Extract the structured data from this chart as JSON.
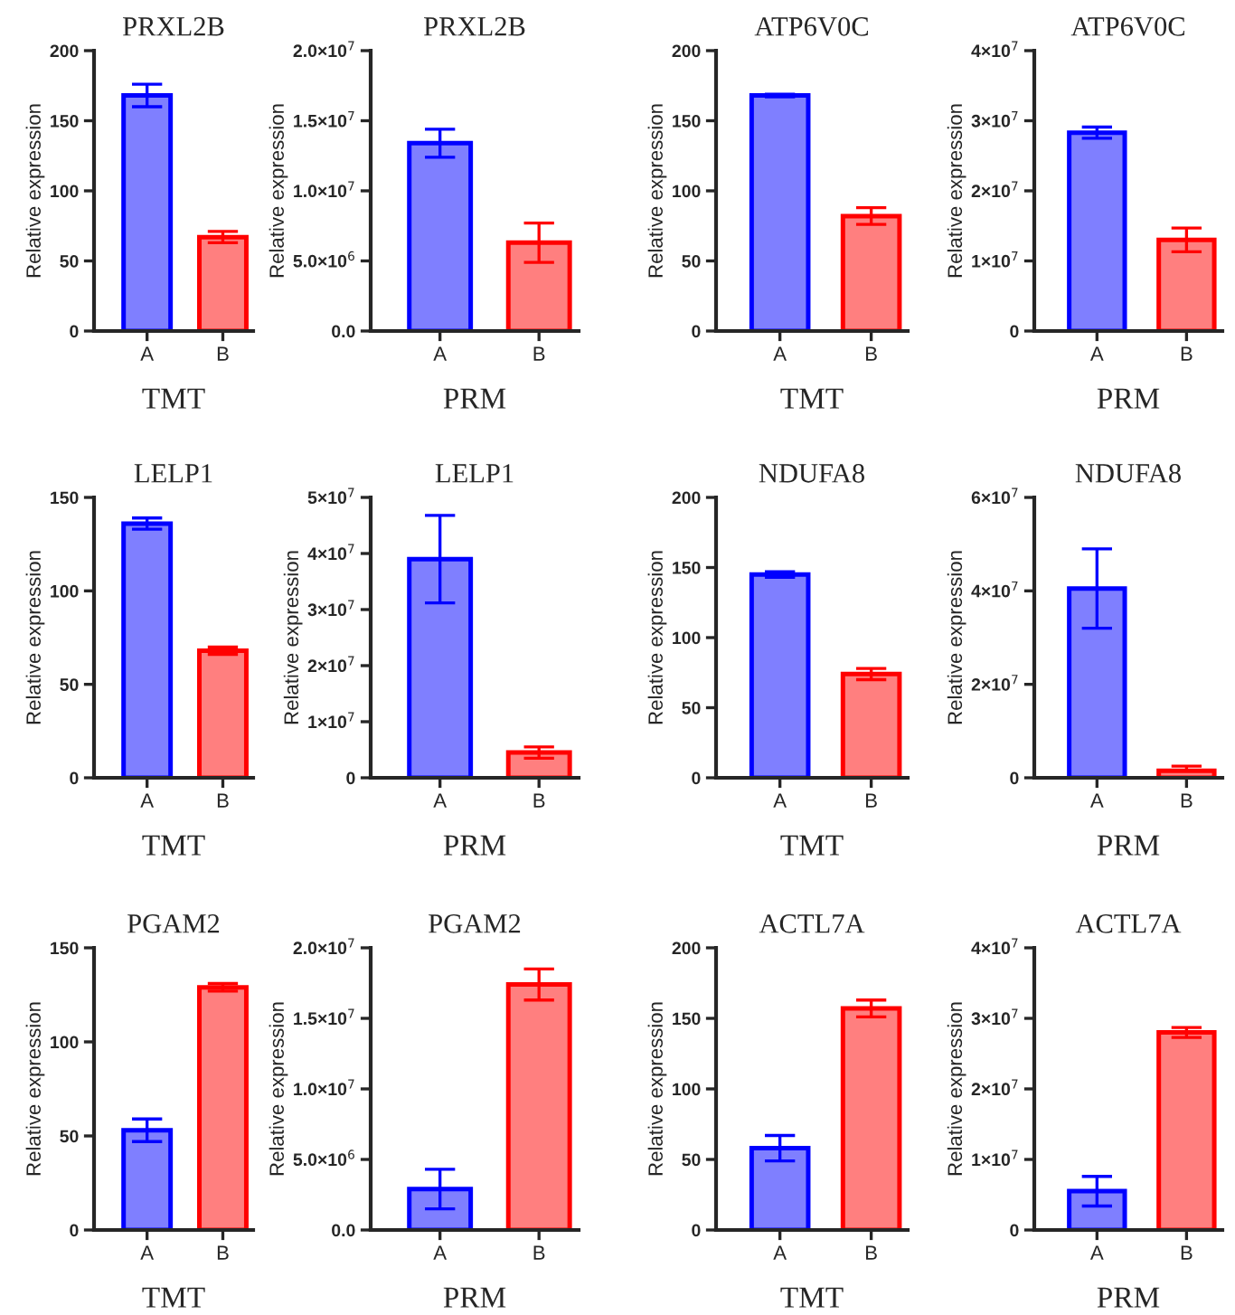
{
  "chart_data": [
    {
      "type": "bar",
      "title": "PRXL2B",
      "xlabel": "TMT",
      "ylabel": "Relative expression",
      "categories": [
        "A",
        "B"
      ],
      "values": [
        168,
        67
      ],
      "errors": [
        8,
        4
      ],
      "colors": [
        "#0000ff",
        "#ff0000"
      ],
      "ylim": [
        0,
        200
      ],
      "yticks": [
        0,
        50,
        100,
        150,
        200
      ]
    },
    {
      "type": "bar",
      "title": "PRXL2B",
      "xlabel": "PRM",
      "ylabel": "Relative expression",
      "categories": [
        "A",
        "B"
      ],
      "values": [
        13400000,
        6300000
      ],
      "errors": [
        1000000,
        1400000
      ],
      "colors": [
        "#0000ff",
        "#ff0000"
      ],
      "ylim": [
        0,
        20000000
      ],
      "yticks": [
        {
          "value": 0,
          "label": "0.0"
        },
        {
          "value": 5000000,
          "label": "5.0×10$^{6}$"
        },
        {
          "value": 10000000,
          "label": "1.0×10$^{7}$"
        },
        {
          "value": 15000000,
          "label": "1.5×10$^{7}$"
        },
        {
          "value": 20000000,
          "label": "2.0×10$^{7}$"
        }
      ]
    },
    {
      "type": "bar",
      "title": "ATP6V0C",
      "xlabel": "TMT",
      "ylabel": "Relative expression",
      "categories": [
        "A",
        "B"
      ],
      "values": [
        168,
        82
      ],
      "errors": [
        1,
        6
      ],
      "colors": [
        "#0000ff",
        "#ff0000"
      ],
      "ylim": [
        0,
        200
      ],
      "yticks": [
        0,
        50,
        100,
        150,
        200
      ]
    },
    {
      "type": "bar",
      "title": "ATP6V0C",
      "xlabel": "PRM",
      "ylabel": "Relative expression",
      "categories": [
        "A",
        "B"
      ],
      "values": [
        28300000,
        13000000
      ],
      "errors": [
        800000,
        1700000
      ],
      "colors": [
        "#0000ff",
        "#ff0000"
      ],
      "ylim": [
        0,
        40000000
      ],
      "yticks": [
        0,
        {
          "value": 10000000,
          "label": "1×10$^{7}$"
        },
        {
          "value": 20000000,
          "label": "2×10$^{7}$"
        },
        {
          "value": 30000000,
          "label": "3×10$^{7}$"
        },
        {
          "value": 40000000,
          "label": "4×10$^{7}$"
        }
      ]
    },
    {
      "type": "bar",
      "title": "LELP1",
      "xlabel": "TMT",
      "ylabel": "Relative expression",
      "categories": [
        "A",
        "B"
      ],
      "values": [
        136,
        68
      ],
      "errors": [
        3,
        2
      ],
      "colors": [
        "#0000ff",
        "#ff0000"
      ],
      "ylim": [
        0,
        150
      ],
      "yticks": [
        0,
        50,
        100,
        150
      ]
    },
    {
      "type": "bar",
      "title": "LELP1",
      "xlabel": "PRM",
      "ylabel": "Relative expression",
      "categories": [
        "A",
        "B"
      ],
      "values": [
        39000000,
        4500000
      ],
      "errors": [
        7800000,
        1000000
      ],
      "colors": [
        "#0000ff",
        "#ff0000"
      ],
      "ylim": [
        0,
        50000000
      ],
      "yticks": [
        0,
        {
          "value": 10000000,
          "label": "1×10$^{7}$"
        },
        {
          "value": 20000000,
          "label": "2×10$^{7}$"
        },
        {
          "value": 30000000,
          "label": "3×10$^{7}$"
        },
        {
          "value": 40000000,
          "label": "4×10$^{7}$"
        },
        {
          "value": 50000000,
          "label": "5×10$^{7}$"
        }
      ]
    },
    {
      "type": "bar",
      "title": "NDUFA8",
      "xlabel": "TMT",
      "ylabel": "Relative expression",
      "categories": [
        "A",
        "B"
      ],
      "values": [
        145,
        74
      ],
      "errors": [
        2,
        4
      ],
      "colors": [
        "#0000ff",
        "#ff0000"
      ],
      "ylim": [
        0,
        200
      ],
      "yticks": [
        0,
        50,
        100,
        150,
        200
      ]
    },
    {
      "type": "bar",
      "title": "NDUFA8",
      "xlabel": "PRM",
      "ylabel": "Relative expression",
      "categories": [
        "A",
        "B"
      ],
      "values": [
        40500000,
        1500000
      ],
      "errors": [
        8500000,
        [
          1500000,
          2500000
        ]
      ],
      "colors": [
        "#0000ff",
        "#ff0000"
      ],
      "ylim": [
        0,
        60000000
      ],
      "yticks": [
        0,
        {
          "value": 20000000,
          "label": "2×10$^{7}$"
        },
        {
          "value": 40000000,
          "label": "4×10$^{7}$"
        },
        {
          "value": 60000000,
          "label": "6×10$^{7}$"
        }
      ]
    },
    {
      "type": "bar",
      "title": "PGAM2",
      "xlabel": "TMT",
      "ylabel": "Relative expression",
      "categories": [
        "A",
        "B"
      ],
      "values": [
        53,
        129
      ],
      "errors": [
        6,
        2
      ],
      "colors": [
        "#0000ff",
        "#ff0000"
      ],
      "ylim": [
        0,
        150
      ],
      "yticks": [
        0,
        50,
        100,
        150
      ]
    },
    {
      "type": "bar",
      "title": "PGAM2",
      "xlabel": "PRM",
      "ylabel": "Relative expression",
      "categories": [
        "A",
        "B"
      ],
      "values": [
        2900000,
        17400000
      ],
      "errors": [
        1400000,
        1100000
      ],
      "colors": [
        "#0000ff",
        "#ff0000"
      ],
      "ylim": [
        0,
        20000000
      ],
      "yticks": [
        {
          "value": 0,
          "label": "0.0"
        },
        {
          "value": 5000000,
          "label": "5.0×10$^{6}$"
        },
        {
          "value": 10000000,
          "label": "1.0×10$^{7}$"
        },
        {
          "value": 15000000,
          "label": "1.5×10$^{7}$"
        },
        {
          "value": 20000000,
          "label": "2.0×10$^{7}$"
        }
      ]
    },
    {
      "type": "bar",
      "title": "ACTL7A",
      "xlabel": "TMT",
      "ylabel": "Relative expression",
      "categories": [
        "A",
        "B"
      ],
      "values": [
        58,
        157
      ],
      "errors": [
        9,
        6
      ],
      "colors": [
        "#0000ff",
        "#ff0000"
      ],
      "ylim": [
        0,
        200
      ],
      "yticks": [
        0,
        50,
        100,
        150,
        200
      ]
    },
    {
      "type": "bar",
      "title": "ACTL7A",
      "xlabel": "PRM",
      "ylabel": "Relative expression",
      "categories": [
        "A",
        "B"
      ],
      "values": [
        5500000,
        28000000
      ],
      "errors": [
        2100000,
        700000
      ],
      "colors": [
        "#0000ff",
        "#ff0000"
      ],
      "ylim": [
        0,
        40000000
      ],
      "yticks": [
        0,
        {
          "value": 10000000,
          "label": "1×10$^{7}$"
        },
        {
          "value": 20000000,
          "label": "2×10$^{7}$"
        },
        {
          "value": 30000000,
          "label": "3×10$^{7}$"
        },
        {
          "value": 40000000,
          "label": "4×10$^{7}$"
        }
      ]
    }
  ]
}
